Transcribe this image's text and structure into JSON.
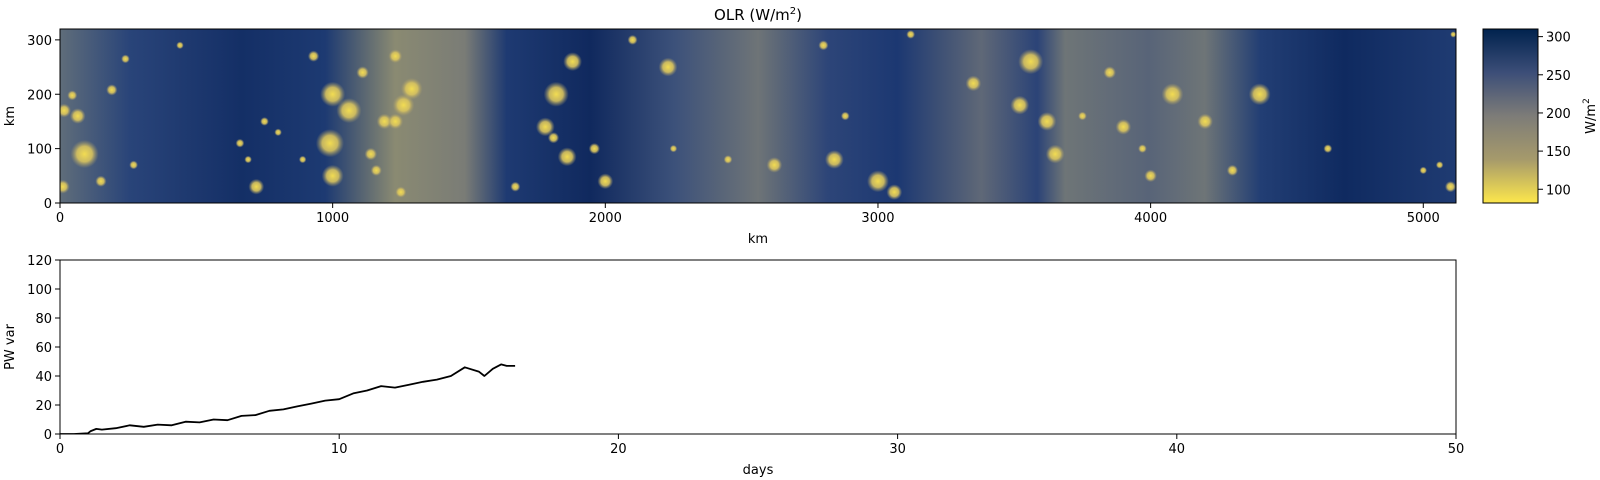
{
  "chart_data": [
    {
      "type": "heatmap",
      "title_base": "OLR (W/m",
      "title_sup": "2",
      "title_close": ")",
      "xlabel": "km",
      "ylabel": "km",
      "xlim": [
        0,
        5120
      ],
      "ylim": [
        0,
        320
      ],
      "xticks": [
        0,
        1000,
        2000,
        3000,
        4000,
        5000
      ],
      "yticks": [
        0,
        100,
        200,
        300
      ],
      "colorbar": {
        "label_base": "W/m",
        "label_sup": "2",
        "ticks": [
          100,
          150,
          200,
          250,
          300
        ],
        "range": [
          82,
          310
        ],
        "colors": [
          "#fde74c",
          "#a69a6b",
          "#7d7c78",
          "#3c4e78",
          "#00224e"
        ]
      },
      "convective_cells": [
        [
          10,
          30,
          22
        ],
        [
          15,
          170,
          22
        ],
        [
          45,
          198,
          16
        ],
        [
          90,
          90,
          45
        ],
        [
          65,
          160,
          25
        ],
        [
          150,
          40,
          18
        ],
        [
          190,
          208,
          18
        ],
        [
          240,
          265,
          14
        ],
        [
          270,
          70,
          14
        ],
        [
          440,
          290,
          12
        ],
        [
          660,
          110,
          14
        ],
        [
          690,
          80,
          12
        ],
        [
          720,
          30,
          25
        ],
        [
          750,
          150,
          14
        ],
        [
          800,
          130,
          12
        ],
        [
          890,
          80,
          12
        ],
        [
          930,
          270,
          18
        ],
        [
          990,
          110,
          45
        ],
        [
          1000,
          200,
          40
        ],
        [
          1000,
          50,
          35
        ],
        [
          1060,
          170,
          40
        ],
        [
          1110,
          240,
          20
        ],
        [
          1140,
          90,
          20
        ],
        [
          1160,
          60,
          18
        ],
        [
          1190,
          150,
          25
        ],
        [
          1230,
          150,
          25
        ],
        [
          1230,
          270,
          22
        ],
        [
          1260,
          180,
          35
        ],
        [
          1290,
          210,
          35
        ],
        [
          1250,
          20,
          18
        ],
        [
          1670,
          30,
          16
        ],
        [
          1780,
          140,
          30
        ],
        [
          1810,
          120,
          18
        ],
        [
          1820,
          200,
          40
        ],
        [
          1860,
          85,
          30
        ],
        [
          1880,
          260,
          30
        ],
        [
          1960,
          100,
          18
        ],
        [
          2000,
          40,
          25
        ],
        [
          2100,
          300,
          16
        ],
        [
          2230,
          250,
          30
        ],
        [
          2250,
          100,
          12
        ],
        [
          2450,
          80,
          14
        ],
        [
          2620,
          70,
          25
        ],
        [
          2800,
          290,
          16
        ],
        [
          2840,
          80,
          30
        ],
        [
          2880,
          160,
          14
        ],
        [
          3000,
          40,
          35
        ],
        [
          3060,
          20,
          25
        ],
        [
          3120,
          310,
          14
        ],
        [
          3350,
          220,
          25
        ],
        [
          3520,
          180,
          30
        ],
        [
          3560,
          260,
          40
        ],
        [
          3620,
          150,
          30
        ],
        [
          3650,
          90,
          30
        ],
        [
          3750,
          160,
          14
        ],
        [
          3850,
          240,
          20
        ],
        [
          3900,
          140,
          25
        ],
        [
          3970,
          100,
          14
        ],
        [
          4000,
          50,
          20
        ],
        [
          4080,
          200,
          35
        ],
        [
          4200,
          150,
          25
        ],
        [
          4300,
          60,
          18
        ],
        [
          4400,
          200,
          35
        ],
        [
          4650,
          100,
          14
        ],
        [
          5000,
          60,
          12
        ],
        [
          5060,
          70,
          12
        ],
        [
          5100,
          30,
          18
        ],
        [
          5110,
          310,
          10
        ]
      ]
    },
    {
      "type": "line",
      "xlabel": "days",
      "ylabel": "PW var",
      "xlim": [
        0,
        50
      ],
      "ylim": [
        0,
        120
      ],
      "xticks": [
        0,
        10,
        20,
        30,
        40,
        50
      ],
      "yticks": [
        0,
        20,
        40,
        60,
        80,
        100,
        120
      ],
      "series": [
        {
          "color": "#000000",
          "x": [
            0,
            0.5,
            1.0,
            1.1,
            1.3,
            1.5,
            2.0,
            2.5,
            3.0,
            3.5,
            4.0,
            4.5,
            5.0,
            5.5,
            6.0,
            6.5,
            7.0,
            7.5,
            8.0,
            8.5,
            9.0,
            9.5,
            10.0,
            10.5,
            11.0,
            11.5,
            12.0,
            12.5,
            13.0,
            13.5,
            14.0,
            14.5,
            15.0,
            15.2,
            15.5,
            15.8,
            16.0,
            16.3
          ],
          "y": [
            0,
            0,
            0.5,
            2,
            3.5,
            3,
            4,
            6,
            5,
            6.5,
            6,
            8.5,
            8,
            10,
            9.5,
            12.5,
            13,
            16,
            17,
            19,
            21,
            23,
            24,
            28,
            30,
            33,
            32,
            34,
            36,
            37.5,
            40,
            46,
            43,
            40,
            45,
            48,
            47,
            47
          ]
        }
      ]
    }
  ]
}
